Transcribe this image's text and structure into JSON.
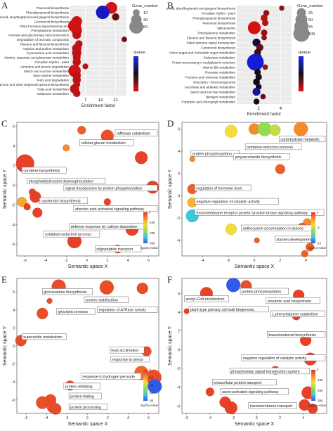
{
  "chart_data": [
    {
      "type": "scatter",
      "panel": "A",
      "xlabel": "Enrichment factor",
      "xticks": [
        7,
        14,
        21
      ],
      "xlim": [
        0,
        26
      ],
      "categories": [
        "Flavonoid biosynthesis",
        "Phenylpropanoid biosynthesis",
        "Stilbenoid, diarylheptanoid and gingerol biosynthesis",
        "Carotenoid biosynthesis",
        "Plant hormone signal transduction",
        "Phenylalanine metabolism",
        "Pentose and glucuronate interconversions",
        "Degradation of aromatic compounds",
        "Flavone and flavonol biosynthesis",
        "Arginine and proline metabolism",
        "Cyanoamino acid metabolism",
        "Alanine, aspartate and glutamate metabolism",
        "Circadian rhythm - plant",
        "Limonene and pinene degradation",
        "Starch and sucrose metabolism",
        "beta-Alanine metabolism",
        "Fatty acid degradation",
        "Ubiquinone and other terpenoid-quinone biosynthesis",
        "Fatty acid metabolism",
        "Galactose metabolism"
      ],
      "x": [
        19,
        15,
        21,
        3,
        2,
        3,
        3,
        25,
        4,
        3,
        3,
        3,
        3,
        7,
        2,
        3,
        3,
        3,
        2,
        3
      ],
      "size": [
        40,
        55,
        12,
        30,
        50,
        30,
        18,
        5,
        12,
        22,
        22,
        14,
        16,
        6,
        45,
        16,
        16,
        10,
        22,
        12
      ],
      "q": [
        0.05,
        0.9,
        0.3,
        0.05,
        0.05,
        0.05,
        0.1,
        0.3,
        0.1,
        0.1,
        0.1,
        0.1,
        0.1,
        0.1,
        0.05,
        0.1,
        0.1,
        0.1,
        0.1,
        0.1
      ],
      "legend_size_title": "Gene_number",
      "legend_sizes": [
        10,
        30,
        60
      ],
      "legend_color_title": "qvalue"
    },
    {
      "type": "scatter",
      "panel": "B",
      "xlabel": "Enrichment factor",
      "xticks": [
        2,
        4
      ],
      "xlim": [
        0,
        5
      ],
      "categories": [
        "Stilbenoid, diarylheptanoid and gingerol biosynthesis",
        "Circadian rhythm - plant",
        "Phenylpropanoid biosynthesis",
        "Flavonoid biosynthesis",
        "Spliceosome",
        "Phenylalanine metabolism",
        "Flavone and flavonol biosynthesis",
        "Plant hormone signal transduction",
        "Carotenoid biosynthesis",
        "Amino sugar and nucleotide sugar metabolism",
        "Galactose metabolism",
        "Protein processing in endoplasmic reticulum",
        "Vitamin B6 metabolism",
        "Pyruvate metabolism",
        "Fructose and mannose metabolism",
        "Glycolysis / Gluconeogenesis",
        "Ascorbate and aldarate metabolism",
        "Starch and sucrose metabolism",
        "Nitrogen metabolism",
        "Porphyrin and chlorophyll metabolism"
      ],
      "x": [
        4.1,
        2.7,
        2.5,
        2.6,
        1.6,
        2.5,
        2.5,
        1.8,
        2.1,
        1.9,
        2.0,
        1.7,
        2.6,
        1.9,
        2.0,
        1.8,
        2.0,
        1.8,
        2.4,
        1.8
      ],
      "size": [
        5,
        8,
        12,
        10,
        60,
        10,
        6,
        18,
        14,
        12,
        10,
        110,
        6,
        10,
        10,
        12,
        8,
        18,
        6,
        8
      ],
      "q": [
        0.2,
        0.2,
        0.1,
        0.1,
        0.05,
        0.2,
        0.2,
        0.6,
        0.3,
        0.4,
        0.4,
        0.95,
        0.2,
        0.5,
        0.5,
        0.5,
        0.5,
        0.8,
        0.3,
        0.5
      ],
      "legend_size_title": "Gene_number",
      "legend_sizes": [
        25,
        50,
        75,
        100
      ],
      "legend_color_title": "qvalue"
    },
    {
      "type": "scatter",
      "panel": "C",
      "xlabel": "Semantic space X",
      "ylabel": "Semantic space Y",
      "xticks": [
        -6,
        -4,
        -2,
        0,
        2,
        4,
        6
      ],
      "yticks": [
        -6,
        -4,
        -2,
        0,
        2,
        4,
        6
      ],
      "xlim": [
        -6.8,
        7
      ],
      "ylim": [
        -7.2,
        6.4
      ],
      "colorbar_title": "log10 p-value",
      "colorbar_ticks": [
        0,
        -100,
        -200,
        -300
      ],
      "points": [
        {
          "x": -0.5,
          "y": 5.6,
          "r": 6,
          "p": -30
        },
        {
          "x": 2.0,
          "y": 5.0,
          "r": 9,
          "p": -20
        },
        {
          "x": -6.0,
          "y": 2.2,
          "r": 13,
          "p": -10
        },
        {
          "x": -2.0,
          "y": 3.8,
          "r": 5,
          "p": -60
        },
        {
          "x": 5.3,
          "y": 2.8,
          "r": 9,
          "p": -10
        },
        {
          "x": 6.4,
          "y": -0.2,
          "r": 9,
          "p": -10
        },
        {
          "x": -5.0,
          "y": -1.2,
          "r": 8,
          "p": -10
        },
        {
          "x": -6.3,
          "y": -1.7,
          "r": 7,
          "p": -80
        },
        {
          "x": -5.8,
          "y": -2.2,
          "r": 5,
          "p": -10
        },
        {
          "x": -4.8,
          "y": -2.8,
          "r": 7,
          "p": -10
        },
        {
          "x": -5.3,
          "y": -0.7,
          "r": 5,
          "p": -10
        },
        {
          "x": 2.0,
          "y": -1.7,
          "r": 5,
          "p": -10
        },
        {
          "x": -1.2,
          "y": -5.7,
          "r": 10,
          "p": -10
        },
        {
          "x": 3.0,
          "y": -6.5,
          "r": 6,
          "p": -10
        },
        {
          "x": 4.4,
          "y": -4.5,
          "r": 9,
          "p": -10
        }
      ],
      "labels": [
        {
          "text": "raffinose catabolism",
          "x": 3.0,
          "y": 5.2
        },
        {
          "text": "cellular glucan metabolism",
          "x": -0.7,
          "y": 4.2
        },
        {
          "text": "carotene biosynthesis",
          "x": -6.3,
          "y": 1.4
        },
        {
          "text": "phosphatidylinositol dephosphorylation",
          "x": -5.8,
          "y": 0.3
        },
        {
          "text": "signal transduction by protein phosphorylation",
          "x": -2.2,
          "y": -0.4
        },
        {
          "text": "carotenoid biosynthesis",
          "x": -4.6,
          "y": -1.7
        },
        {
          "text": "abscisic acid-activated signaling pathway",
          "x": 0.0,
          "y": -2.5
        },
        {
          "text": "defense response by callose deposition",
          "x": -1.7,
          "y": -4.3
        },
        {
          "text": "oxidation-reduction process",
          "x": -4.2,
          "y": -5.1
        },
        {
          "text": "oligopeptide transport",
          "x": 0.8,
          "y": -6.6
        }
      ]
    },
    {
      "type": "scatter",
      "panel": "D",
      "xlabel": "Semantic space X",
      "ylabel": "Semantic space Y",
      "xticks": [
        -4,
        -2,
        0,
        2,
        4
      ],
      "yticks": [
        -4,
        -2,
        0,
        2,
        4,
        6
      ],
      "xlim": [
        -5.6,
        5.6
      ],
      "ylim": [
        -5.4,
        6.6
      ],
      "colorbar_title": "log10 p-value",
      "colorbar_ticks": [
        0,
        -5,
        -10
      ],
      "points": [
        {
          "x": -1.8,
          "y": 5.8,
          "r": 9,
          "p": -4
        },
        {
          "x": 0.0,
          "y": 6.0,
          "r": 8,
          "p": -2
        },
        {
          "x": 0.8,
          "y": 6.0,
          "r": 10,
          "p": -6
        },
        {
          "x": 1.6,
          "y": 5.9,
          "r": 8,
          "p": -5
        },
        {
          "x": 3.6,
          "y": 6.0,
          "r": 10,
          "p": -2
        },
        {
          "x": -4.8,
          "y": 3.3,
          "r": 4,
          "p": -2
        },
        {
          "x": 2.0,
          "y": 2.4,
          "r": 7,
          "p": -1
        },
        {
          "x": -4.8,
          "y": 0.6,
          "r": 7,
          "p": -1
        },
        {
          "x": -4.8,
          "y": -0.6,
          "r": 7,
          "p": -3
        },
        {
          "x": -4.8,
          "y": -1.8,
          "r": 9,
          "p": -8
        },
        {
          "x": -1.8,
          "y": -3.0,
          "r": 8,
          "p": -4
        },
        {
          "x": 4.1,
          "y": -2.4,
          "r": 6,
          "p": -2
        },
        {
          "x": 3.7,
          "y": -2.8,
          "r": 6,
          "p": -1
        },
        {
          "x": 4.3,
          "y": -4.6,
          "r": 6,
          "p": -1
        },
        {
          "x": 3.9,
          "y": -5.2,
          "r": 5,
          "p": -1
        },
        {
          "x": 0.2,
          "y": -4.0,
          "r": 4,
          "p": -1
        }
      ],
      "labels": [
        {
          "text": "carbohydrate metabolic",
          "x": 2.4,
          "y": 5.0
        },
        {
          "text": "oxidation-reduction process",
          "x": -0.7,
          "y": 4.3
        },
        {
          "text": "protein phosphorylation",
          "x": -4.9,
          "y": 3.7
        },
        {
          "text": "polysaccharide biosynthetic",
          "x": -1.6,
          "y": 3.4
        },
        {
          "text": "regulation of hormone level",
          "x": -4.6,
          "y": 0.6
        },
        {
          "text": "negative regulation of catalytic activity",
          "x": -4.6,
          "y": -0.6
        },
        {
          "text": "transmembrane receptor protein tyrosine kinase signaling pathway",
          "x": -4.6,
          "y": -1.6
        },
        {
          "text": "anthocyanin accumulation in tissues",
          "x": -1.0,
          "y": -3.0
        },
        {
          "text": "stamen development",
          "x": 1.6,
          "y": -4.0
        }
      ]
    },
    {
      "type": "scatter",
      "panel": "E",
      "xlabel": "Semantic space X",
      "ylabel": "Semantic space Y",
      "xticks": [
        -6,
        -4,
        -2,
        0,
        2,
        4,
        6
      ],
      "yticks": [
        -6,
        -4,
        -2,
        0,
        2,
        4,
        6
      ],
      "xlim": [
        -6.9,
        7
      ],
      "ylim": [
        -7.5,
        7.5
      ],
      "colorbar_title": "log10 p-value",
      "colorbar_ticks": [
        0,
        -20,
        -40,
        -60,
        -80
      ],
      "points": [
        {
          "x": -2.8,
          "y": 6.6,
          "r": 10,
          "p": -5
        },
        {
          "x": 1.9,
          "y": 6.5,
          "r": 10,
          "p": -5
        },
        {
          "x": 5.4,
          "y": 6.4,
          "r": 8,
          "p": -5
        },
        {
          "x": -3.7,
          "y": 5.0,
          "r": 4,
          "p": -5
        },
        {
          "x": -4.4,
          "y": 3.6,
          "r": 8,
          "p": -5
        },
        {
          "x": -6.5,
          "y": 0.6,
          "r": 8,
          "p": -5
        },
        {
          "x": 5.8,
          "y": -0.6,
          "r": 7,
          "p": -5
        },
        {
          "x": 5.3,
          "y": -3.0,
          "r": 10,
          "p": -10
        },
        {
          "x": 6.5,
          "y": -3.5,
          "r": 11,
          "p": -5
        },
        {
          "x": 6.6,
          "y": -4.5,
          "r": 10,
          "p": -80
        },
        {
          "x": -1.7,
          "y": -4.4,
          "r": 7,
          "p": -5
        },
        {
          "x": -3.6,
          "y": -6.0,
          "r": 8,
          "p": -5
        },
        {
          "x": -4.4,
          "y": -6.3,
          "r": 9,
          "p": -5
        },
        {
          "x": -3.4,
          "y": -6.8,
          "r": 8,
          "p": -5
        },
        {
          "x": -3.1,
          "y": -7.0,
          "r": 8,
          "p": -5
        }
      ],
      "labels": [
        {
          "text": "glucosamine biosynthesis",
          "x": -4.4,
          "y": 5.9
        },
        {
          "text": "protein stabilization",
          "x": -0.3,
          "y": 5.0
        },
        {
          "text": "regulation of ATPase activity",
          "x": 1.9,
          "y": 3.9
        },
        {
          "text": "glycolytic process",
          "x": -3.0,
          "y": 3.7
        },
        {
          "text": "superoxide metabolism",
          "x": -6.4,
          "y": 0.9
        },
        {
          "text": "heat acclimation",
          "x": 2.2,
          "y": -0.6
        },
        {
          "text": "response to stress",
          "x": 2.3,
          "y": -1.6
        },
        {
          "text": "response to hydrogen peroxide",
          "x": -0.6,
          "y": -3.5
        },
        {
          "text": "protein refolding",
          "x": -2.3,
          "y": -4.6
        },
        {
          "text": "protein folding",
          "x": -1.8,
          "y": -5.7
        },
        {
          "text": "protein processing",
          "x": -1.8,
          "y": -6.9
        }
      ]
    },
    {
      "type": "scatter",
      "panel": "F",
      "xlabel": "Semantic space X",
      "ylabel": "Semantic space Y",
      "xticks": [
        -6,
        -4,
        -2,
        0,
        2,
        4
      ],
      "yticks": [
        -6,
        -4,
        -2,
        0,
        2,
        4,
        6
      ],
      "xlim": [
        -6.4,
        6.0
      ],
      "ylim": [
        -6.8,
        7.6
      ],
      "colorbar_title": "log10 p-value",
      "colorbar_ticks": [
        0,
        -100,
        -200,
        -300
      ],
      "points": [
        {
          "x": -2.0,
          "y": 6.9,
          "r": 10,
          "p": -300
        },
        {
          "x": -0.9,
          "y": 6.8,
          "r": 8,
          "p": -20
        },
        {
          "x": -4.3,
          "y": 6.0,
          "r": 9,
          "p": -10
        },
        {
          "x": 3.6,
          "y": 5.8,
          "r": 8,
          "p": -10
        },
        {
          "x": -6.0,
          "y": 4.1,
          "r": 4,
          "p": -10
        },
        {
          "x": 3.4,
          "y": 3.6,
          "r": 6,
          "p": -10
        },
        {
          "x": 4.2,
          "y": 1.0,
          "r": 8,
          "p": -10
        },
        {
          "x": 4.6,
          "y": -1.0,
          "r": 9,
          "p": -10
        },
        {
          "x": 1.6,
          "y": -2.2,
          "r": 6,
          "p": -10
        },
        {
          "x": -4.0,
          "y": -4.5,
          "r": 6,
          "p": -10
        },
        {
          "x": -2.7,
          "y": -5.6,
          "r": 8,
          "p": -10
        },
        {
          "x": -2.2,
          "y": -6.2,
          "r": 9,
          "p": -10
        },
        {
          "x": 4.4,
          "y": -4.6,
          "r": 9,
          "p": -10
        },
        {
          "x": 4.1,
          "y": -5.9,
          "r": 8,
          "p": -10
        },
        {
          "x": 4.8,
          "y": -6.3,
          "r": 7,
          "p": -10
        }
      ],
      "labels": [
        {
          "text": "protein phosphorylation",
          "x": -1.4,
          "y": 6.1
        },
        {
          "text": "acetyl-CoA metabolism",
          "x": -6.2,
          "y": 5.3
        },
        {
          "text": "cinnamic acid biosynthetic",
          "x": 0.8,
          "y": 5.1
        },
        {
          "text": "plant-type primary cell wall biogenesis",
          "x": -5.8,
          "y": 4.2
        },
        {
          "text": "L-phenylalanine catabolism",
          "x": 1.2,
          "y": 3.7
        },
        {
          "text": "brassinosteroid biosynthesis",
          "x": 1.9,
          "y": 1.5
        },
        {
          "text": "negative regulation of catalytic activity",
          "x": -0.6,
          "y": -1.0
        },
        {
          "text": "phosphorelay signal transduction system",
          "x": -2.3,
          "y": -2.4
        },
        {
          "text": "intracellular protein transport",
          "x": -3.8,
          "y": -3.6
        },
        {
          "text": "auxin-activated signaling pathway",
          "x": -3.1,
          "y": -4.6
        },
        {
          "text": "transmembrane transport",
          "x": -0.7,
          "y": -6.1
        }
      ]
    }
  ]
}
